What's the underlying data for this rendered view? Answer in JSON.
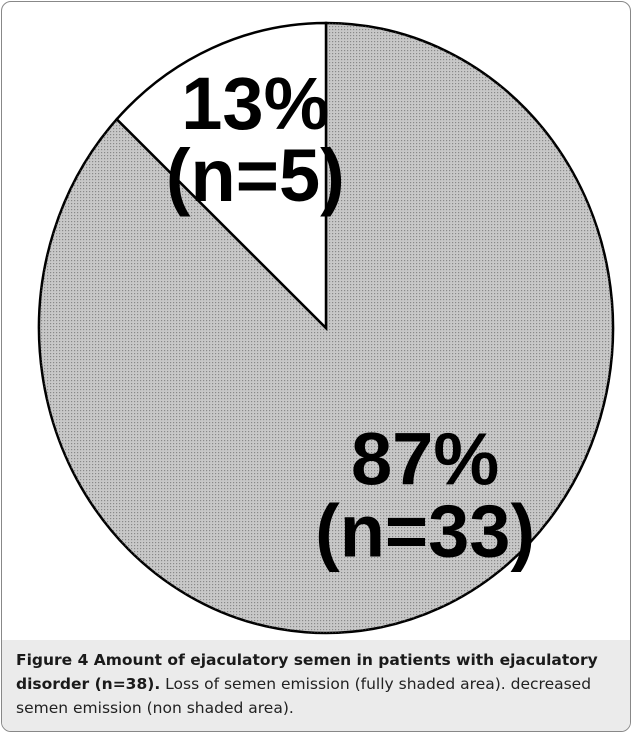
{
  "chart_data": {
    "type": "pie",
    "values": [
      87,
      13
    ],
    "value_labels": [
      "87%",
      "13%"
    ],
    "n_labels": [
      "(n=33)",
      "(n=5)"
    ],
    "colors": [
      "#c8c8c8",
      "#ffffff"
    ]
  },
  "caption": {
    "bold": "Figure 4 Amount of ejaculatory semen in patients with ejaculatory disorder (n=38).",
    "text": "Loss of semen emission (fully shaded area). decreased semen emission (non shaded area)."
  }
}
